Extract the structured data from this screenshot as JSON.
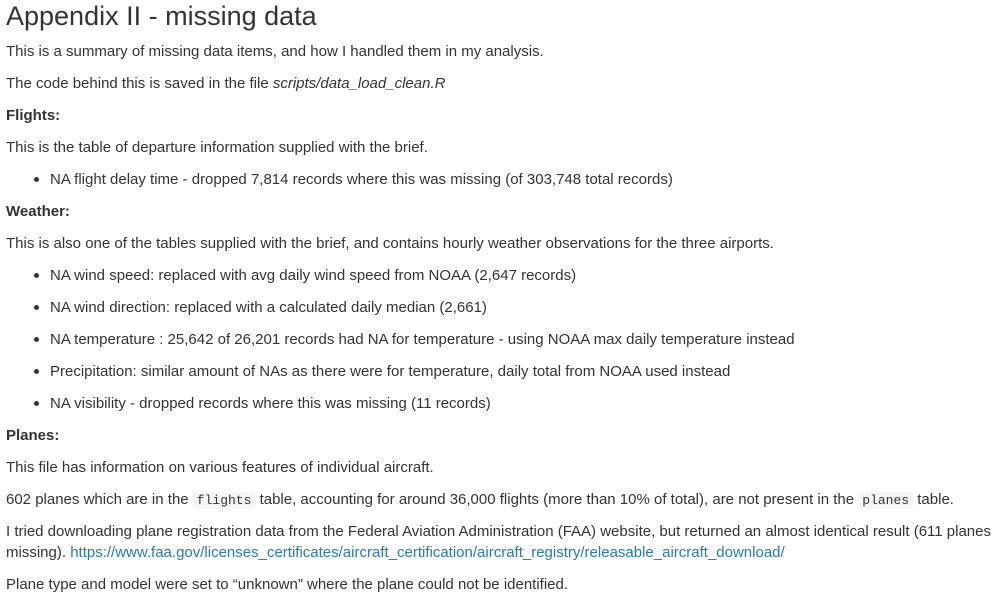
{
  "title": "Appendix II - missing data",
  "intro": "This is a summary of missing data items, and how I handled them in my analysis.",
  "code_line": {
    "prefix": "The code behind this is saved in the file ",
    "file": "scripts/data_load_clean.R"
  },
  "flights": {
    "heading": "Flights:",
    "description": "This is the table of departure information supplied with the brief.",
    "items": [
      "NA flight delay time - dropped 7,814 records where this was missing (of 303,748 total records)"
    ]
  },
  "weather": {
    "heading": "Weather:",
    "description": "This is also one of the tables supplied with the brief, and contains hourly weather observations for the three airports.",
    "items": [
      "NA wind speed: replaced with avg daily wind speed from NOAA (2,647 records)",
      "NA wind direction: replaced with a calculated daily median (2,661)",
      "NA temperature : 25,642 of 26,201 records had NA for temperature - using NOAA max daily temperature instead",
      "Precipitation: similar amount of NAs as there were for temperature, daily total from NOAA used instead",
      "NA visibility - dropped records where this was missing (11 records)"
    ]
  },
  "planes": {
    "heading": "Planes:",
    "description": "This file has information on various features of individual aircraft.",
    "missing_line": {
      "part1": "602 planes which are in the ",
      "code1": "flights",
      "part2": " table, accounting for around 36,000 flights (more than 10% of total), are not present in the ",
      "code2": "planes",
      "part3": " table."
    },
    "faa_line": {
      "text": "I tried downloading plane registration data from the Federal Aviation Administration (FAA) website, but returned an almost identical result (611 planes missing). ",
      "link": "https://www.faa.gov/licenses_certificates/aircraft_certification/aircraft_registry/releasable_aircraft_download/"
    },
    "unknown_line": "Plane type and model were set to “unknown” where the plane could not be identified."
  }
}
